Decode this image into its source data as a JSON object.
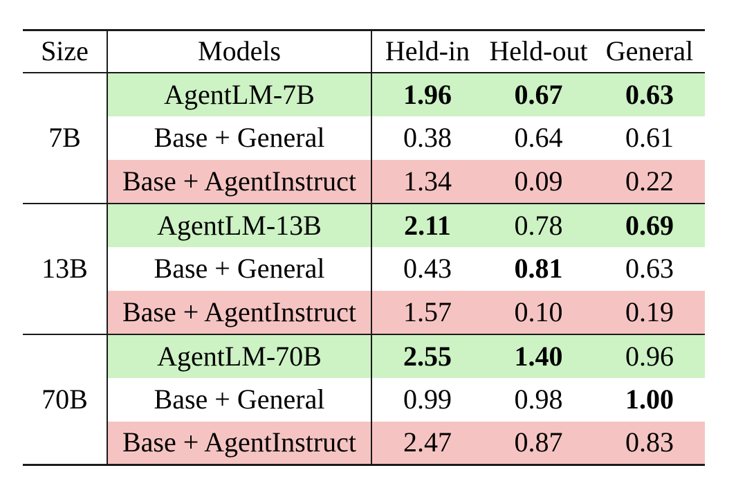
{
  "table": {
    "columns": [
      "Size",
      "Models",
      "Held-in",
      "Held-out",
      "General"
    ],
    "colors": {
      "agentlm_row_bg": "#cdf2c4",
      "agentinstruct_row_bg": "#f5c4c2",
      "border": "#1a1a1a",
      "text": "#000000"
    },
    "groups": [
      {
        "size": "7B",
        "rows": [
          {
            "model": "AgentLM-7B",
            "held_in": "1.96",
            "held_out": "0.67",
            "general": "0.63",
            "bold": [
              true,
              true,
              true
            ],
            "highlight": "green"
          },
          {
            "model": "Base + General",
            "held_in": "0.38",
            "held_out": "0.64",
            "general": "0.61",
            "bold": [
              false,
              false,
              false
            ],
            "highlight": "none"
          },
          {
            "model": "Base + AgentInstruct",
            "held_in": "1.34",
            "held_out": "0.09",
            "general": "0.22",
            "bold": [
              false,
              false,
              false
            ],
            "highlight": "pink"
          }
        ]
      },
      {
        "size": "13B",
        "rows": [
          {
            "model": "AgentLM-13B",
            "held_in": "2.11",
            "held_out": "0.78",
            "general": "0.69",
            "bold": [
              true,
              false,
              true
            ],
            "highlight": "green"
          },
          {
            "model": "Base + General",
            "held_in": "0.43",
            "held_out": "0.81",
            "general": "0.63",
            "bold": [
              false,
              true,
              false
            ],
            "highlight": "none"
          },
          {
            "model": "Base + AgentInstruct",
            "held_in": "1.57",
            "held_out": "0.10",
            "general": "0.19",
            "bold": [
              false,
              false,
              false
            ],
            "highlight": "pink"
          }
        ]
      },
      {
        "size": "70B",
        "rows": [
          {
            "model": "AgentLM-70B",
            "held_in": "2.55",
            "held_out": "1.40",
            "general": "0.96",
            "bold": [
              true,
              true,
              false
            ],
            "highlight": "green"
          },
          {
            "model": "Base + General",
            "held_in": "0.99",
            "held_out": "0.98",
            "general": "1.00",
            "bold": [
              false,
              false,
              true
            ],
            "highlight": "none"
          },
          {
            "model": "Base + AgentInstruct",
            "held_in": "2.47",
            "held_out": "0.87",
            "general": "0.83",
            "bold": [
              false,
              false,
              false
            ],
            "highlight": "pink"
          }
        ]
      }
    ]
  }
}
